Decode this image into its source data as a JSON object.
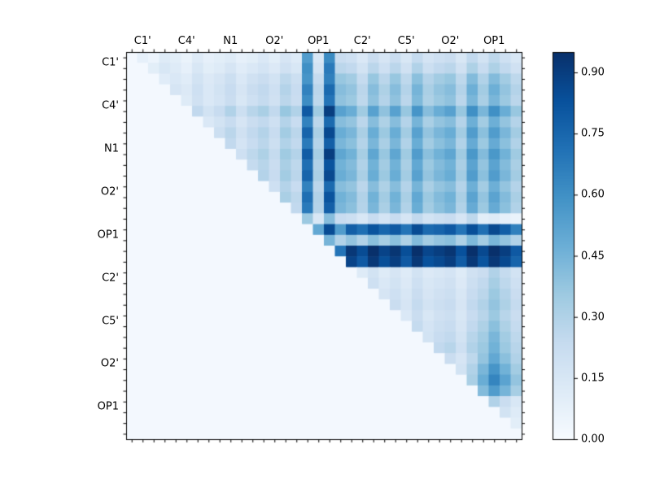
{
  "figure": {
    "background": "#ffffff",
    "frame_color": "#000000",
    "tick_color": "#000000",
    "label_color": "#000000"
  },
  "chart_data": {
    "type": "heatmap",
    "title": "",
    "xlabel": "",
    "ylabel": "",
    "description": "Upper-triangular correlation heatmap over 36 atom positions, Blues colormap, x tick labels on top axis, colorbar at right",
    "x_tick_labels": [
      "C1'",
      "C4'",
      "N1",
      "O2'",
      "OP1",
      "C2'",
      "C5'",
      "O2'",
      "OP1"
    ],
    "y_tick_labels": [
      "C1'",
      "C4'",
      "N1",
      "O2'",
      "OP1",
      "C2'",
      "C5'",
      "O2'",
      "OP1"
    ],
    "n": 36,
    "group_size": 4,
    "grid": false,
    "vmin": 0.0,
    "vmax": 0.95,
    "colormap_name": "Blues",
    "colormap_stops": [
      "#f7fbff",
      "#deebf7",
      "#c6dbef",
      "#9ecae1",
      "#6baed6",
      "#4292c6",
      "#2171b5",
      "#08519c",
      "#08306b"
    ],
    "colorbar_ticks": [
      "0.00",
      "0.15",
      "0.30",
      "0.45",
      "0.60",
      "0.75",
      "0.90"
    ],
    "matrix": [
      [
        0.02,
        0.08,
        0.05,
        0.12,
        0.1,
        0.06,
        0.12,
        0.08,
        0.1,
        0.12,
        0.08,
        0.1,
        0.14,
        0.1,
        0.16,
        0.12,
        0.55,
        0.15,
        0.62,
        0.22,
        0.2,
        0.14,
        0.22,
        0.16,
        0.22,
        0.15,
        0.24,
        0.17,
        0.2,
        0.22,
        0.15,
        0.25,
        0.18,
        0.26,
        0.2,
        0.15
      ],
      [
        0.02,
        0.02,
        0.1,
        0.15,
        0.12,
        0.08,
        0.15,
        0.1,
        0.12,
        0.16,
        0.11,
        0.14,
        0.17,
        0.13,
        0.19,
        0.15,
        0.6,
        0.18,
        0.68,
        0.27,
        0.25,
        0.18,
        0.27,
        0.2,
        0.27,
        0.19,
        0.3,
        0.21,
        0.25,
        0.27,
        0.19,
        0.31,
        0.23,
        0.31,
        0.25,
        0.19
      ],
      [
        0.02,
        0.02,
        0.02,
        0.11,
        0.14,
        0.11,
        0.18,
        0.13,
        0.16,
        0.21,
        0.14,
        0.19,
        0.22,
        0.18,
        0.26,
        0.21,
        0.58,
        0.24,
        0.66,
        0.37,
        0.34,
        0.24,
        0.37,
        0.27,
        0.37,
        0.26,
        0.4,
        0.29,
        0.34,
        0.37,
        0.26,
        0.42,
        0.3,
        0.42,
        0.34,
        0.26
      ],
      [
        0.02,
        0.02,
        0.02,
        0.02,
        0.16,
        0.13,
        0.2,
        0.14,
        0.18,
        0.23,
        0.16,
        0.22,
        0.25,
        0.2,
        0.29,
        0.23,
        0.65,
        0.27,
        0.74,
        0.41,
        0.38,
        0.27,
        0.41,
        0.31,
        0.41,
        0.29,
        0.45,
        0.32,
        0.38,
        0.41,
        0.29,
        0.47,
        0.34,
        0.47,
        0.38,
        0.29
      ],
      [
        0.02,
        0.02,
        0.02,
        0.02,
        0.02,
        0.12,
        0.19,
        0.14,
        0.17,
        0.22,
        0.15,
        0.2,
        0.24,
        0.19,
        0.27,
        0.22,
        0.61,
        0.26,
        0.7,
        0.39,
        0.36,
        0.26,
        0.39,
        0.29,
        0.39,
        0.27,
        0.43,
        0.31,
        0.36,
        0.39,
        0.27,
        0.44,
        0.32,
        0.44,
        0.36,
        0.27
      ],
      [
        0.02,
        0.02,
        0.02,
        0.02,
        0.02,
        0.02,
        0.25,
        0.18,
        0.23,
        0.3,
        0.21,
        0.28,
        0.32,
        0.25,
        0.37,
        0.3,
        0.8,
        0.35,
        0.9,
        0.53,
        0.48,
        0.35,
        0.53,
        0.39,
        0.53,
        0.37,
        0.58,
        0.41,
        0.48,
        0.53,
        0.37,
        0.6,
        0.44,
        0.6,
        0.48,
        0.37
      ],
      [
        0.02,
        0.02,
        0.02,
        0.02,
        0.02,
        0.02,
        0.02,
        0.14,
        0.18,
        0.23,
        0.16,
        0.22,
        0.25,
        0.2,
        0.29,
        0.23,
        0.65,
        0.27,
        0.74,
        0.41,
        0.38,
        0.27,
        0.41,
        0.31,
        0.41,
        0.29,
        0.45,
        0.32,
        0.38,
        0.41,
        0.29,
        0.47,
        0.34,
        0.47,
        0.38,
        0.29
      ],
      [
        0.02,
        0.02,
        0.02,
        0.02,
        0.02,
        0.02,
        0.02,
        0.02,
        0.21,
        0.27,
        0.19,
        0.25,
        0.29,
        0.23,
        0.34,
        0.27,
        0.76,
        0.32,
        0.86,
        0.48,
        0.44,
        0.32,
        0.48,
        0.36,
        0.48,
        0.34,
        0.53,
        0.38,
        0.44,
        0.48,
        0.34,
        0.55,
        0.4,
        0.55,
        0.44,
        0.34
      ],
      [
        0.02,
        0.02,
        0.02,
        0.02,
        0.02,
        0.02,
        0.02,
        0.02,
        0.02,
        0.25,
        0.17,
        0.23,
        0.27,
        0.21,
        0.3,
        0.25,
        0.68,
        0.29,
        0.78,
        0.44,
        0.4,
        0.29,
        0.44,
        0.32,
        0.44,
        0.3,
        0.48,
        0.34,
        0.4,
        0.44,
        0.3,
        0.49,
        0.36,
        0.49,
        0.4,
        0.3
      ],
      [
        0.02,
        0.02,
        0.02,
        0.02,
        0.02,
        0.02,
        0.02,
        0.02,
        0.02,
        0.02,
        0.2,
        0.26,
        0.31,
        0.24,
        0.35,
        0.29,
        0.79,
        0.33,
        0.9,
        0.51,
        0.46,
        0.33,
        0.51,
        0.37,
        0.51,
        0.35,
        0.55,
        0.4,
        0.46,
        0.51,
        0.35,
        0.57,
        0.42,
        0.57,
        0.46,
        0.35
      ],
      [
        0.02,
        0.02,
        0.02,
        0.02,
        0.02,
        0.02,
        0.02,
        0.02,
        0.02,
        0.02,
        0.02,
        0.24,
        0.28,
        0.22,
        0.32,
        0.26,
        0.72,
        0.3,
        0.82,
        0.46,
        0.42,
        0.3,
        0.46,
        0.34,
        0.46,
        0.32,
        0.5,
        0.36,
        0.42,
        0.46,
        0.32,
        0.52,
        0.38,
        0.52,
        0.42,
        0.32
      ],
      [
        0.02,
        0.02,
        0.02,
        0.02,
        0.02,
        0.02,
        0.02,
        0.02,
        0.02,
        0.02,
        0.02,
        0.02,
        0.29,
        0.23,
        0.34,
        0.27,
        0.76,
        0.32,
        0.86,
        0.48,
        0.44,
        0.32,
        0.48,
        0.36,
        0.48,
        0.34,
        0.53,
        0.38,
        0.44,
        0.48,
        0.34,
        0.55,
        0.4,
        0.55,
        0.44,
        0.34
      ],
      [
        0.02,
        0.02,
        0.02,
        0.02,
        0.02,
        0.02,
        0.02,
        0.02,
        0.02,
        0.02,
        0.02,
        0.02,
        0.02,
        0.2,
        0.29,
        0.23,
        0.65,
        0.27,
        0.74,
        0.41,
        0.38,
        0.27,
        0.41,
        0.31,
        0.41,
        0.29,
        0.45,
        0.32,
        0.38,
        0.41,
        0.29,
        0.47,
        0.34,
        0.47,
        0.38,
        0.29
      ],
      [
        0.02,
        0.02,
        0.02,
        0.02,
        0.02,
        0.02,
        0.02,
        0.02,
        0.02,
        0.02,
        0.02,
        0.02,
        0.02,
        0.02,
        0.32,
        0.26,
        0.72,
        0.3,
        0.82,
        0.46,
        0.42,
        0.3,
        0.46,
        0.34,
        0.46,
        0.32,
        0.5,
        0.36,
        0.42,
        0.46,
        0.32,
        0.52,
        0.38,
        0.52,
        0.42,
        0.32
      ],
      [
        0.02,
        0.02,
        0.02,
        0.02,
        0.02,
        0.02,
        0.02,
        0.02,
        0.02,
        0.02,
        0.02,
        0.02,
        0.02,
        0.02,
        0.02,
        0.25,
        0.68,
        0.29,
        0.78,
        0.44,
        0.4,
        0.29,
        0.44,
        0.32,
        0.44,
        0.3,
        0.48,
        0.34,
        0.4,
        0.44,
        0.3,
        0.49,
        0.36,
        0.49,
        0.4,
        0.3
      ],
      [
        0.02,
        0.02,
        0.02,
        0.02,
        0.02,
        0.02,
        0.02,
        0.02,
        0.02,
        0.02,
        0.02,
        0.02,
        0.02,
        0.02,
        0.02,
        0.02,
        0.36,
        0.15,
        0.41,
        0.23,
        0.21,
        0.15,
        0.23,
        0.17,
        0.23,
        0.16,
        0.25,
        0.18,
        0.21,
        0.23,
        0.16,
        0.26,
        0.1,
        0.12,
        0.08,
        0.06
      ],
      [
        0.02,
        0.02,
        0.02,
        0.02,
        0.02,
        0.02,
        0.02,
        0.02,
        0.02,
        0.02,
        0.02,
        0.02,
        0.02,
        0.02,
        0.02,
        0.02,
        0.02,
        0.5,
        0.85,
        0.55,
        0.78,
        0.72,
        0.82,
        0.75,
        0.8,
        0.7,
        0.85,
        0.74,
        0.76,
        0.8,
        0.7,
        0.84,
        0.72,
        0.86,
        0.78,
        0.66
      ],
      [
        0.02,
        0.02,
        0.02,
        0.02,
        0.02,
        0.02,
        0.02,
        0.02,
        0.02,
        0.02,
        0.02,
        0.02,
        0.02,
        0.02,
        0.02,
        0.02,
        0.02,
        0.02,
        0.45,
        0.3,
        0.38,
        0.3,
        0.4,
        0.33,
        0.4,
        0.31,
        0.42,
        0.34,
        0.38,
        0.4,
        0.31,
        0.43,
        0.34,
        0.44,
        0.38,
        0.3
      ],
      [
        0.02,
        0.02,
        0.02,
        0.02,
        0.02,
        0.02,
        0.02,
        0.02,
        0.02,
        0.02,
        0.02,
        0.02,
        0.02,
        0.02,
        0.02,
        0.02,
        0.02,
        0.02,
        0.02,
        0.7,
        0.92,
        0.85,
        0.95,
        0.88,
        0.93,
        0.84,
        0.95,
        0.87,
        0.9,
        0.93,
        0.83,
        0.95,
        0.86,
        0.95,
        0.9,
        0.8
      ],
      [
        0.02,
        0.02,
        0.02,
        0.02,
        0.02,
        0.02,
        0.02,
        0.02,
        0.02,
        0.02,
        0.02,
        0.02,
        0.02,
        0.02,
        0.02,
        0.02,
        0.02,
        0.02,
        0.02,
        0.02,
        0.88,
        0.8,
        0.92,
        0.84,
        0.9,
        0.8,
        0.92,
        0.83,
        0.86,
        0.9,
        0.79,
        0.92,
        0.82,
        0.92,
        0.86,
        0.76
      ],
      [
        0.02,
        0.02,
        0.02,
        0.02,
        0.02,
        0.02,
        0.02,
        0.02,
        0.02,
        0.02,
        0.02,
        0.02,
        0.02,
        0.02,
        0.02,
        0.02,
        0.02,
        0.02,
        0.02,
        0.02,
        0.02,
        0.12,
        0.18,
        0.12,
        0.16,
        0.12,
        0.18,
        0.13,
        0.15,
        0.17,
        0.12,
        0.19,
        0.22,
        0.3,
        0.24,
        0.18
      ],
      [
        0.02,
        0.02,
        0.02,
        0.02,
        0.02,
        0.02,
        0.02,
        0.02,
        0.02,
        0.02,
        0.02,
        0.02,
        0.02,
        0.02,
        0.02,
        0.02,
        0.02,
        0.02,
        0.02,
        0.02,
        0.02,
        0.02,
        0.2,
        0.14,
        0.18,
        0.13,
        0.2,
        0.15,
        0.17,
        0.19,
        0.13,
        0.21,
        0.25,
        0.33,
        0.26,
        0.2
      ],
      [
        0.02,
        0.02,
        0.02,
        0.02,
        0.02,
        0.02,
        0.02,
        0.02,
        0.02,
        0.02,
        0.02,
        0.02,
        0.02,
        0.02,
        0.02,
        0.02,
        0.02,
        0.02,
        0.02,
        0.02,
        0.02,
        0.02,
        0.02,
        0.16,
        0.2,
        0.15,
        0.22,
        0.16,
        0.19,
        0.21,
        0.15,
        0.23,
        0.27,
        0.36,
        0.29,
        0.22
      ],
      [
        0.02,
        0.02,
        0.02,
        0.02,
        0.02,
        0.02,
        0.02,
        0.02,
        0.02,
        0.02,
        0.02,
        0.02,
        0.02,
        0.02,
        0.02,
        0.02,
        0.02,
        0.02,
        0.02,
        0.02,
        0.02,
        0.02,
        0.02,
        0.02,
        0.22,
        0.16,
        0.24,
        0.18,
        0.21,
        0.23,
        0.16,
        0.25,
        0.3,
        0.38,
        0.31,
        0.24
      ],
      [
        0.02,
        0.02,
        0.02,
        0.02,
        0.02,
        0.02,
        0.02,
        0.02,
        0.02,
        0.02,
        0.02,
        0.02,
        0.02,
        0.02,
        0.02,
        0.02,
        0.02,
        0.02,
        0.02,
        0.02,
        0.02,
        0.02,
        0.02,
        0.02,
        0.02,
        0.14,
        0.22,
        0.15,
        0.19,
        0.21,
        0.15,
        0.23,
        0.28,
        0.36,
        0.28,
        0.22
      ],
      [
        0.02,
        0.02,
        0.02,
        0.02,
        0.02,
        0.02,
        0.02,
        0.02,
        0.02,
        0.02,
        0.02,
        0.02,
        0.02,
        0.02,
        0.02,
        0.02,
        0.02,
        0.02,
        0.02,
        0.02,
        0.02,
        0.02,
        0.02,
        0.02,
        0.02,
        0.02,
        0.24,
        0.17,
        0.21,
        0.23,
        0.16,
        0.25,
        0.31,
        0.4,
        0.31,
        0.24
      ],
      [
        0.02,
        0.02,
        0.02,
        0.02,
        0.02,
        0.02,
        0.02,
        0.02,
        0.02,
        0.02,
        0.02,
        0.02,
        0.02,
        0.02,
        0.02,
        0.02,
        0.02,
        0.02,
        0.02,
        0.02,
        0.02,
        0.02,
        0.02,
        0.02,
        0.02,
        0.02,
        0.02,
        0.18,
        0.23,
        0.25,
        0.18,
        0.28,
        0.34,
        0.44,
        0.34,
        0.26
      ],
      [
        0.02,
        0.02,
        0.02,
        0.02,
        0.02,
        0.02,
        0.02,
        0.02,
        0.02,
        0.02,
        0.02,
        0.02,
        0.02,
        0.02,
        0.02,
        0.02,
        0.02,
        0.02,
        0.02,
        0.02,
        0.02,
        0.02,
        0.02,
        0.02,
        0.02,
        0.02,
        0.02,
        0.02,
        0.25,
        0.28,
        0.2,
        0.3,
        0.36,
        0.46,
        0.36,
        0.28
      ],
      [
        0.02,
        0.02,
        0.02,
        0.02,
        0.02,
        0.02,
        0.02,
        0.02,
        0.02,
        0.02,
        0.02,
        0.02,
        0.02,
        0.02,
        0.02,
        0.02,
        0.02,
        0.02,
        0.02,
        0.02,
        0.02,
        0.02,
        0.02,
        0.02,
        0.02,
        0.02,
        0.02,
        0.02,
        0.02,
        0.22,
        0.16,
        0.26,
        0.38,
        0.5,
        0.4,
        0.3
      ],
      [
        0.02,
        0.02,
        0.02,
        0.02,
        0.02,
        0.02,
        0.02,
        0.02,
        0.02,
        0.02,
        0.02,
        0.02,
        0.02,
        0.02,
        0.02,
        0.02,
        0.02,
        0.02,
        0.02,
        0.02,
        0.02,
        0.02,
        0.02,
        0.02,
        0.02,
        0.02,
        0.02,
        0.02,
        0.02,
        0.02,
        0.18,
        0.3,
        0.44,
        0.58,
        0.46,
        0.34
      ],
      [
        0.02,
        0.02,
        0.02,
        0.02,
        0.02,
        0.02,
        0.02,
        0.02,
        0.02,
        0.02,
        0.02,
        0.02,
        0.02,
        0.02,
        0.02,
        0.02,
        0.02,
        0.02,
        0.02,
        0.02,
        0.02,
        0.02,
        0.02,
        0.02,
        0.02,
        0.02,
        0.02,
        0.02,
        0.02,
        0.02,
        0.02,
        0.32,
        0.48,
        0.64,
        0.52,
        0.38
      ],
      [
        0.02,
        0.02,
        0.02,
        0.02,
        0.02,
        0.02,
        0.02,
        0.02,
        0.02,
        0.02,
        0.02,
        0.02,
        0.02,
        0.02,
        0.02,
        0.02,
        0.02,
        0.02,
        0.02,
        0.02,
        0.02,
        0.02,
        0.02,
        0.02,
        0.02,
        0.02,
        0.02,
        0.02,
        0.02,
        0.02,
        0.02,
        0.02,
        0.42,
        0.55,
        0.45,
        0.33
      ],
      [
        0.02,
        0.02,
        0.02,
        0.02,
        0.02,
        0.02,
        0.02,
        0.02,
        0.02,
        0.02,
        0.02,
        0.02,
        0.02,
        0.02,
        0.02,
        0.02,
        0.02,
        0.02,
        0.02,
        0.02,
        0.02,
        0.02,
        0.02,
        0.02,
        0.02,
        0.02,
        0.02,
        0.02,
        0.02,
        0.02,
        0.02,
        0.02,
        0.02,
        0.3,
        0.22,
        0.15
      ],
      [
        0.02,
        0.02,
        0.02,
        0.02,
        0.02,
        0.02,
        0.02,
        0.02,
        0.02,
        0.02,
        0.02,
        0.02,
        0.02,
        0.02,
        0.02,
        0.02,
        0.02,
        0.02,
        0.02,
        0.02,
        0.02,
        0.02,
        0.02,
        0.02,
        0.02,
        0.02,
        0.02,
        0.02,
        0.02,
        0.02,
        0.02,
        0.02,
        0.02,
        0.02,
        0.18,
        0.12
      ],
      [
        0.02,
        0.02,
        0.02,
        0.02,
        0.02,
        0.02,
        0.02,
        0.02,
        0.02,
        0.02,
        0.02,
        0.02,
        0.02,
        0.02,
        0.02,
        0.02,
        0.02,
        0.02,
        0.02,
        0.02,
        0.02,
        0.02,
        0.02,
        0.02,
        0.02,
        0.02,
        0.02,
        0.02,
        0.02,
        0.02,
        0.02,
        0.02,
        0.02,
        0.02,
        0.02,
        0.1
      ],
      [
        0.02,
        0.02,
        0.02,
        0.02,
        0.02,
        0.02,
        0.02,
        0.02,
        0.02,
        0.02,
        0.02,
        0.02,
        0.02,
        0.02,
        0.02,
        0.02,
        0.02,
        0.02,
        0.02,
        0.02,
        0.02,
        0.02,
        0.02,
        0.02,
        0.02,
        0.02,
        0.02,
        0.02,
        0.02,
        0.02,
        0.02,
        0.02,
        0.02,
        0.02,
        0.02,
        0.02
      ]
    ]
  }
}
